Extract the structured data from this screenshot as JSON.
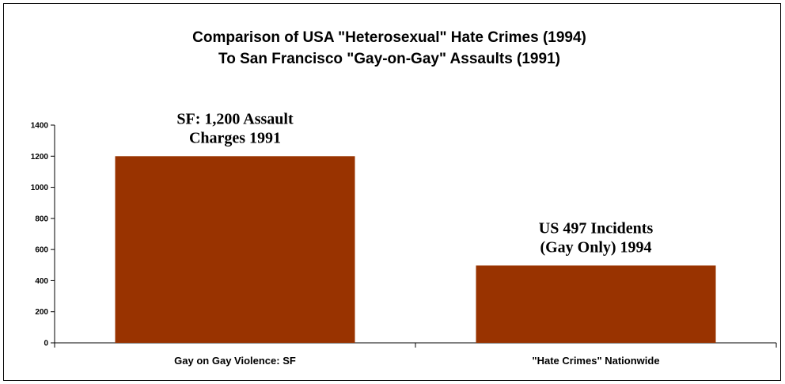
{
  "chart_data": {
    "type": "bar",
    "title_lines": [
      "Comparison of USA \"Heterosexual\" Hate Crimes (1994)",
      "To San Francisco \"Gay-on-Gay\"  Assaults (1991)"
    ],
    "categories": [
      "Gay on Gay Violence: SF",
      "\"Hate Crimes\" Nationwide"
    ],
    "values": [
      1200,
      497
    ],
    "data_labels": [
      [
        "SF: 1,200 Assault",
        "Charges 1991"
      ],
      [
        "US 497 Incidents",
        "(Gay Only) 1994"
      ]
    ],
    "ylim": [
      0,
      1400
    ],
    "yticks": [
      0,
      200,
      400,
      600,
      800,
      1000,
      1200,
      1400
    ],
    "xlabel": "",
    "ylabel": "",
    "grid": false,
    "legend": "none",
    "colors": {
      "bar": "#993300",
      "axis": "#000000",
      "background": "#ffffff"
    }
  }
}
